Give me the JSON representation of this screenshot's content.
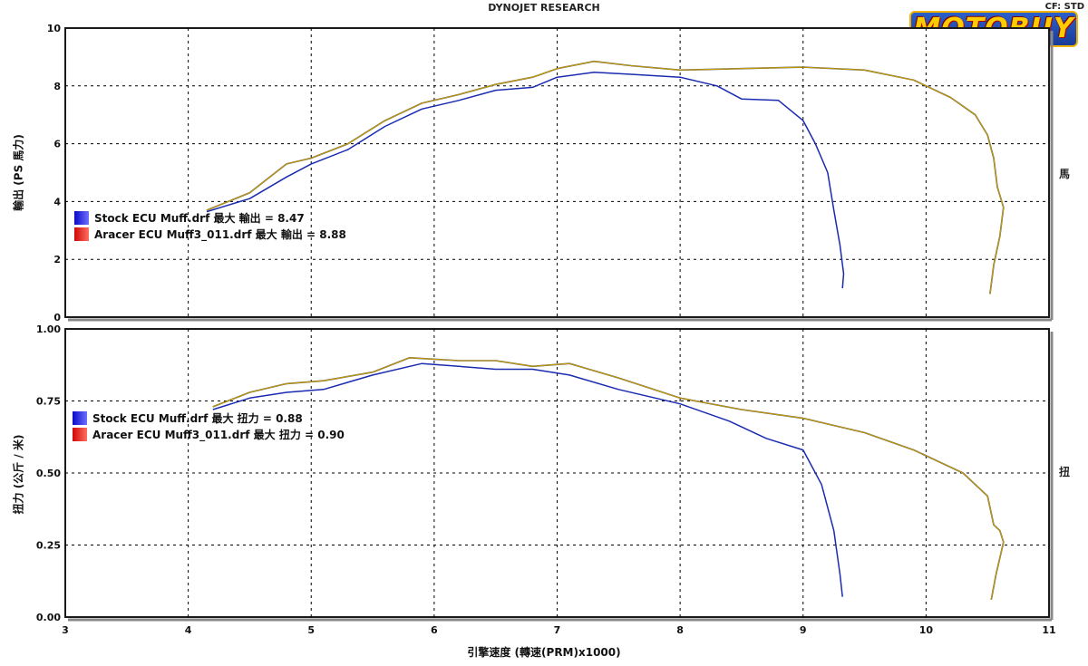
{
  "header": {
    "title": "DYNOJET RESEARCH",
    "cf": "CF: STD",
    "logo": "MOTOBUY"
  },
  "colors": {
    "stock": "#1a2bb0",
    "aracer": "#c9a100",
    "grid": "#000000"
  },
  "chart_data": [
    {
      "type": "line",
      "ylabel": "輸出 (PS 馬力)",
      "right_label": "馬",
      "ylim": [
        0,
        10
      ],
      "yticks": [
        0,
        2,
        4,
        6,
        8,
        10
      ],
      "xlim": [
        3,
        11
      ],
      "series": [
        {
          "name": "Stock ECU Muff.drf",
          "legend": "Stock ECU Muff.drf 最大 輸出 = 8.47",
          "swatch": "blue",
          "points": [
            [
              4.15,
              3.65
            ],
            [
              4.5,
              4.1
            ],
            [
              4.8,
              4.85
            ],
            [
              5.0,
              5.3
            ],
            [
              5.3,
              5.8
            ],
            [
              5.6,
              6.6
            ],
            [
              5.9,
              7.2
            ],
            [
              6.2,
              7.5
            ],
            [
              6.5,
              7.85
            ],
            [
              6.8,
              7.95
            ],
            [
              7.0,
              8.3
            ],
            [
              7.3,
              8.47
            ],
            [
              7.6,
              8.4
            ],
            [
              8.0,
              8.3
            ],
            [
              8.3,
              8.0
            ],
            [
              8.5,
              7.55
            ],
            [
              8.8,
              7.5
            ],
            [
              9.0,
              6.8
            ],
            [
              9.1,
              6.0
            ],
            [
              9.2,
              5.0
            ],
            [
              9.25,
              3.7
            ],
            [
              9.3,
              2.5
            ],
            [
              9.33,
              1.5
            ],
            [
              9.32,
              1.0
            ]
          ]
        },
        {
          "name": "Aracer ECU Muff3_011.drf",
          "legend": "Aracer ECU Muff3_011.drf 最大 輸出 = 8.88",
          "swatch": "red",
          "points": [
            [
              4.15,
              3.7
            ],
            [
              4.5,
              4.3
            ],
            [
              4.8,
              5.3
            ],
            [
              5.0,
              5.5
            ],
            [
              5.3,
              6.0
            ],
            [
              5.6,
              6.8
            ],
            [
              5.9,
              7.4
            ],
            [
              6.2,
              7.7
            ],
            [
              6.5,
              8.05
            ],
            [
              6.8,
              8.3
            ],
            [
              7.0,
              8.6
            ],
            [
              7.3,
              8.85
            ],
            [
              7.6,
              8.7
            ],
            [
              8.0,
              8.55
            ],
            [
              8.5,
              8.6
            ],
            [
              9.0,
              8.65
            ],
            [
              9.5,
              8.55
            ],
            [
              9.9,
              8.2
            ],
            [
              10.2,
              7.6
            ],
            [
              10.4,
              7.0
            ],
            [
              10.5,
              6.3
            ],
            [
              10.55,
              5.5
            ],
            [
              10.58,
              4.5
            ],
            [
              10.63,
              3.8
            ],
            [
              10.6,
              2.8
            ],
            [
              10.55,
              1.8
            ],
            [
              10.52,
              0.8
            ]
          ]
        }
      ]
    },
    {
      "type": "line",
      "ylabel": "扭力 (公斤 / 米)",
      "right_label": "扭",
      "ylim": [
        0,
        1
      ],
      "yticks": [
        "0.00",
        "0.25",
        "0.50",
        "0.75",
        "1.00"
      ],
      "xlim": [
        3,
        11
      ],
      "xticks": [
        3,
        4,
        5,
        6,
        7,
        8,
        9,
        10,
        11
      ],
      "xlabel": "引擎速度 (轉速(PRM)x1000)",
      "series": [
        {
          "name": "Stock ECU Muff.drf",
          "legend": "Stock ECU Muff.drf 最大 扭力 = 0.88",
          "swatch": "blue",
          "points": [
            [
              4.2,
              0.72
            ],
            [
              4.5,
              0.76
            ],
            [
              4.8,
              0.78
            ],
            [
              5.1,
              0.79
            ],
            [
              5.5,
              0.84
            ],
            [
              5.9,
              0.88
            ],
            [
              6.2,
              0.87
            ],
            [
              6.5,
              0.86
            ],
            [
              6.8,
              0.86
            ],
            [
              7.1,
              0.84
            ],
            [
              7.5,
              0.79
            ],
            [
              8.0,
              0.74
            ],
            [
              8.4,
              0.68
            ],
            [
              8.7,
              0.62
            ],
            [
              9.0,
              0.58
            ],
            [
              9.15,
              0.46
            ],
            [
              9.25,
              0.3
            ],
            [
              9.3,
              0.15
            ],
            [
              9.32,
              0.07
            ]
          ]
        },
        {
          "name": "Aracer ECU Muff3_011.drf",
          "legend": "Aracer ECU Muff3_011.drf 最大 扭力 = 0.90",
          "swatch": "red",
          "points": [
            [
              4.2,
              0.73
            ],
            [
              4.5,
              0.78
            ],
            [
              4.8,
              0.81
            ],
            [
              5.1,
              0.82
            ],
            [
              5.5,
              0.85
            ],
            [
              5.8,
              0.9
            ],
            [
              6.2,
              0.89
            ],
            [
              6.5,
              0.89
            ],
            [
              6.8,
              0.87
            ],
            [
              7.1,
              0.88
            ],
            [
              7.5,
              0.83
            ],
            [
              8.0,
              0.76
            ],
            [
              8.5,
              0.72
            ],
            [
              9.0,
              0.69
            ],
            [
              9.5,
              0.64
            ],
            [
              9.9,
              0.58
            ],
            [
              10.3,
              0.5
            ],
            [
              10.5,
              0.42
            ],
            [
              10.55,
              0.32
            ],
            [
              10.6,
              0.3
            ],
            [
              10.63,
              0.26
            ],
            [
              10.57,
              0.15
            ],
            [
              10.53,
              0.06
            ]
          ]
        }
      ]
    }
  ]
}
